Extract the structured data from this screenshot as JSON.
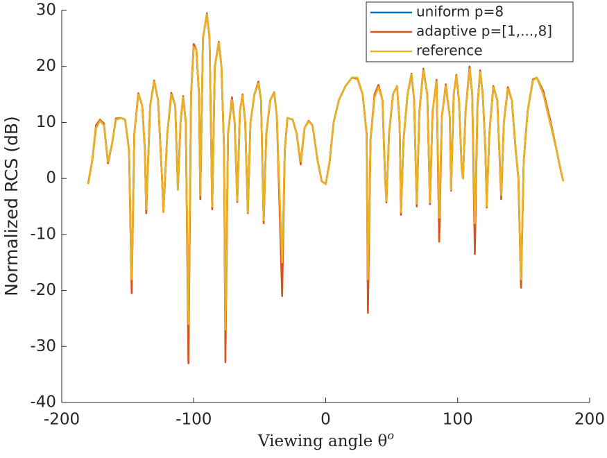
{
  "chart_data": {
    "type": "line",
    "xlabel": "Viewing angle θ",
    "xlabel_superscript": "o",
    "ylabel": "Normalized RCS (dB)",
    "xlim": [
      -200,
      200
    ],
    "xticks": [
      -200,
      -100,
      0,
      100,
      200
    ],
    "ylim": [
      -40,
      30
    ],
    "yticks": [
      -40,
      -30,
      -20,
      -10,
      0,
      10,
      20,
      30
    ],
    "grid": false,
    "legend": "top-right",
    "x": [
      -180,
      -177,
      -174,
      -171,
      -168,
      -165,
      -162,
      -159,
      -155,
      -152,
      -149,
      -147,
      -145,
      -142,
      -139,
      -137,
      -136,
      -133,
      -130,
      -127,
      -124,
      -123,
      -120,
      -117,
      -114,
      -112,
      -110,
      -108,
      -106,
      -104,
      -102,
      -100,
      -98,
      -96,
      -95,
      -93,
      -90,
      -88,
      -86,
      -84,
      -81,
      -79,
      -77,
      -76,
      -74,
      -71,
      -69,
      -67,
      -65,
      -63,
      -61,
      -59,
      -57,
      -54,
      -51,
      -49,
      -47,
      -45,
      -42,
      -39,
      -37,
      -33,
      -31,
      -29,
      -25,
      -22,
      -19,
      -16,
      -13,
      -10,
      -6,
      -3,
      0,
      3,
      6,
      10,
      15,
      20,
      24,
      28,
      31,
      32,
      34,
      37,
      40,
      43,
      45,
      46,
      48,
      51,
      54,
      56,
      57,
      59,
      62,
      65,
      67,
      69,
      71,
      74,
      77,
      79,
      81,
      84,
      86,
      88,
      91,
      94,
      95,
      97,
      99,
      101,
      103,
      104,
      106,
      109,
      111,
      113,
      115,
      117,
      119,
      121,
      122,
      124,
      127,
      130,
      133,
      135,
      138,
      141,
      144,
      146,
      148,
      150,
      153,
      157,
      160,
      165,
      170,
      175,
      178,
      180
    ],
    "series": [
      {
        "name": "uniform p=8",
        "color": "#0072bd",
        "values": [
          -1,
          3,
          9,
          10.3,
          9.5,
          3,
          6,
          10.5,
          10.8,
          10.5,
          5,
          -19,
          8,
          15,
          13,
          5,
          -5.8,
          13,
          17.3,
          14,
          0,
          -6,
          8,
          15,
          13,
          -2,
          10,
          14.5,
          10,
          -30,
          15,
          23.5,
          23,
          15,
          -3.3,
          25,
          29.3,
          25,
          -5.2,
          20,
          24.2,
          20,
          5,
          -30,
          8,
          14,
          10,
          -4,
          12,
          14.8,
          10,
          -6,
          10,
          15,
          17,
          14,
          -7.7,
          8,
          14,
          15.3,
          11,
          -18,
          5,
          10.8,
          10.5,
          8,
          3,
          9,
          10.2,
          9.5,
          3,
          -0.5,
          -1,
          3,
          10,
          14,
          16.5,
          18,
          18,
          15,
          8,
          -21,
          7,
          14.5,
          16.3,
          14,
          0,
          -4,
          8,
          15,
          16.5,
          10,
          -6.2,
          7,
          15,
          18.5,
          14,
          -4.7,
          12,
          19.3,
          15,
          -4.4,
          12,
          17.3,
          -9,
          11,
          16.5,
          11,
          -2,
          15,
          18.3,
          14,
          2,
          0,
          12,
          19.5,
          15,
          -10,
          13,
          19,
          15,
          5,
          -5,
          8,
          16.3,
          14,
          -3.3,
          10,
          16,
          14,
          5,
          0,
          -19,
          3,
          12,
          17.5,
          18,
          15,
          10,
          5,
          1.5,
          -0.5
        ]
      },
      {
        "name": "adaptive p=[1,...,8]",
        "color": "#d95319",
        "values": [
          -0.8,
          3,
          9.5,
          10.5,
          9.8,
          2.7,
          6,
          10.7,
          10.8,
          10.5,
          5,
          -20.5,
          8,
          15.2,
          13,
          5,
          -6.2,
          13,
          17.5,
          14,
          0,
          -6,
          8,
          15.3,
          13,
          -2,
          10,
          14.7,
          10,
          -33,
          15,
          24,
          23,
          15,
          -3.7,
          25,
          29.5,
          25,
          -5.5,
          20,
          24.4,
          20,
          5,
          -32.8,
          8,
          14.5,
          10,
          -4.2,
          12,
          15,
          10,
          -6.2,
          10,
          15,
          17.3,
          14,
          -8,
          8,
          14,
          15.4,
          11,
          -21,
          5,
          10.8,
          10.5,
          8,
          2.5,
          9,
          10.3,
          9.5,
          3,
          -0.5,
          -1,
          3,
          10,
          14,
          16.5,
          18,
          17.8,
          15,
          8,
          -24,
          7,
          15,
          16.7,
          14,
          0,
          -4.3,
          8,
          15,
          16.5,
          10,
          -6.5,
          7,
          15,
          18.7,
          14,
          -5,
          12,
          19.6,
          15,
          -4.6,
          12,
          17.6,
          -11.3,
          11,
          16.8,
          11,
          -2.2,
          15,
          18.5,
          14,
          2,
          0,
          12,
          20,
          15,
          -13.5,
          13,
          19.3,
          15,
          5,
          -5.2,
          8,
          16.5,
          14,
          -3.7,
          10,
          16.3,
          14,
          5,
          0,
          -19.5,
          3,
          12,
          17.7,
          18,
          15.5,
          10.5,
          5,
          1.5,
          -0.5
        ]
      },
      {
        "name": "reference",
        "color": "#edb120",
        "values": [
          -1,
          3,
          9,
          10.3,
          9.5,
          3,
          6,
          10.5,
          10.8,
          10.5,
          5,
          -18,
          8,
          15,
          13,
          5,
          -5.5,
          13,
          17.3,
          14,
          0,
          -6,
          8,
          15,
          13,
          -2,
          10,
          14.5,
          10,
          -26,
          15,
          23.5,
          23,
          15,
          -3,
          25,
          29.3,
          25,
          -5,
          20,
          24.2,
          20,
          5,
          -27,
          8,
          14,
          10,
          -4,
          12,
          14.8,
          10,
          -6,
          10,
          15,
          17,
          14,
          -7.5,
          8,
          14,
          15.3,
          11,
          -15,
          5,
          10.8,
          10.5,
          8,
          3,
          9,
          10.2,
          9.5,
          3,
          -0.5,
          -1,
          3,
          10,
          14,
          16.5,
          18,
          18,
          15,
          8,
          -18,
          7,
          14.5,
          16.3,
          14,
          0,
          -4,
          8,
          15,
          16.5,
          10,
          -6,
          7,
          15,
          18.5,
          14,
          -4.5,
          12,
          19.3,
          15,
          -4.3,
          12,
          17.3,
          -7,
          11,
          16.5,
          11,
          -2,
          15,
          18.3,
          14,
          2,
          0,
          12,
          19.5,
          15,
          -8,
          13,
          19,
          15,
          5,
          -5,
          8,
          16.3,
          14,
          -3,
          10,
          16,
          14,
          5,
          0,
          -18,
          3,
          12,
          17.5,
          18,
          15,
          10,
          5,
          1.5,
          -0.5
        ]
      }
    ]
  }
}
